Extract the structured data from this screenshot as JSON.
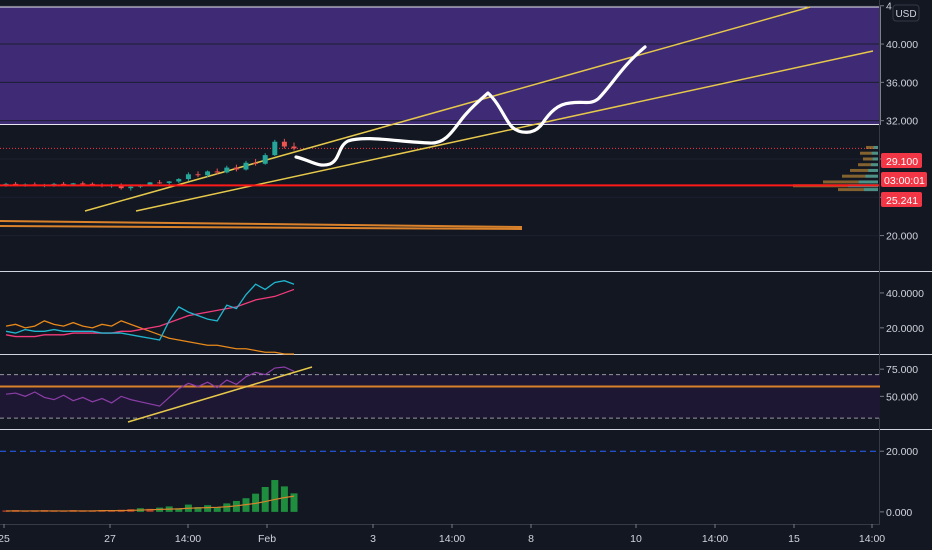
{
  "currency_label": "USD",
  "colors": {
    "background": "#131722",
    "zone_fill": "#3f2a75",
    "channel": "#e6c84b",
    "support_line": "#ff1a1a",
    "orange_line": "#d9822b",
    "price_badge": "#f23645",
    "up_candle": "#26a69a",
    "down_candle": "#ef5350",
    "hist_pos": "#1e8e3e",
    "hist_neg": "#a33a2a"
  },
  "price_badges": {
    "last_price": "29.100",
    "countdown": "03:00:01",
    "support": "25.241"
  },
  "chart_data": [
    {
      "type": "candlestick",
      "panel": "price",
      "y_ticks": [
        "4",
        "40.000",
        "36.000",
        "32.000",
        "28.000",
        "24.000",
        "20.000"
      ],
      "ylim": [
        16.3,
        44.6
      ],
      "zone": [
        31.6,
        44.6
      ],
      "support": 25.241,
      "last_price": 29.1,
      "x_ticks": [
        "25",
        "27",
        "14:00",
        "Feb",
        "3",
        "14:00",
        "8",
        "10",
        "14:00",
        "15",
        "14:00"
      ],
      "candles": [
        [
          25.3,
          25.5,
          25.1,
          25.4
        ],
        [
          25.4,
          25.6,
          25.2,
          25.3
        ],
        [
          25.3,
          25.45,
          25.1,
          25.35
        ],
        [
          25.35,
          25.55,
          25.15,
          25.25
        ],
        [
          25.25,
          25.4,
          25.05,
          25.3
        ],
        [
          25.3,
          25.5,
          25.1,
          25.4
        ],
        [
          25.4,
          25.6,
          25.2,
          25.35
        ],
        [
          25.35,
          25.5,
          25.15,
          25.45
        ],
        [
          25.45,
          25.65,
          25.25,
          25.4
        ],
        [
          25.4,
          25.55,
          25.2,
          25.3
        ],
        [
          25.3,
          25.45,
          25.05,
          25.2
        ],
        [
          25.2,
          25.4,
          25.0,
          25.25
        ],
        [
          25.25,
          25.45,
          24.8,
          24.95
        ],
        [
          24.95,
          25.2,
          24.7,
          25.1
        ],
        [
          25.1,
          25.35,
          24.95,
          25.3
        ],
        [
          25.3,
          25.6,
          25.2,
          25.55
        ],
        [
          25.55,
          25.8,
          25.4,
          25.5
        ],
        [
          25.5,
          25.7,
          25.3,
          25.65
        ],
        [
          25.65,
          26.0,
          25.5,
          25.9
        ],
        [
          25.9,
          26.6,
          25.7,
          26.4
        ],
        [
          26.4,
          26.7,
          26.1,
          26.3
        ],
        [
          26.3,
          26.8,
          26.1,
          26.7
        ],
        [
          26.7,
          27.0,
          26.4,
          26.6
        ],
        [
          26.6,
          27.3,
          26.5,
          27.1
        ],
        [
          27.1,
          27.4,
          26.7,
          26.9
        ],
        [
          26.9,
          27.8,
          26.8,
          27.6
        ],
        [
          27.6,
          28.0,
          27.3,
          27.5
        ],
        [
          27.5,
          28.6,
          27.4,
          28.4
        ],
        [
          28.4,
          30.0,
          28.3,
          29.8
        ],
        [
          29.8,
          30.1,
          29.1,
          29.3
        ],
        [
          29.3,
          29.7,
          28.9,
          29.1
        ]
      ],
      "volume_profile": [
        {
          "price": 29.2,
          "width": 12
        },
        {
          "price": 28.6,
          "width": 18
        },
        {
          "price": 28.0,
          "width": 15
        },
        {
          "price": 27.4,
          "width": 20
        },
        {
          "price": 26.8,
          "width": 28
        },
        {
          "price": 26.2,
          "width": 36
        },
        {
          "price": 25.6,
          "width": 55
        },
        {
          "price": 25.2,
          "width": 85
        },
        {
          "price": 24.8,
          "width": 40
        }
      ]
    },
    {
      "type": "line",
      "panel": "indicator-1",
      "y_ticks": [
        "40.0000",
        "20.0000"
      ],
      "ylim": [
        5,
        52
      ],
      "series": [
        {
          "color": "#e8891a",
          "values": [
            21,
            22,
            20,
            21,
            24,
            22,
            21,
            23,
            21,
            20,
            22,
            21,
            24,
            22,
            20,
            18,
            16,
            14,
            13,
            12,
            11,
            10,
            10,
            9,
            8,
            8,
            7,
            6,
            6,
            5,
            5
          ]
        },
        {
          "color": "#f23b7a",
          "values": [
            16,
            15,
            15,
            15,
            16,
            16,
            16,
            17,
            17,
            17,
            17,
            17,
            18,
            18,
            19,
            20,
            21,
            23,
            25,
            27,
            28,
            29,
            30,
            31,
            32,
            34,
            36,
            37,
            38,
            40,
            42
          ]
        },
        {
          "color": "#1fb6cf",
          "values": [
            18,
            17,
            19,
            18,
            18,
            19,
            18,
            18,
            18,
            18,
            17,
            17,
            17,
            16,
            15,
            14,
            13,
            24,
            32,
            29,
            27,
            25,
            24,
            33,
            31,
            39,
            45,
            42,
            46,
            47,
            45
          ]
        }
      ]
    },
    {
      "type": "line",
      "panel": "indicator-2",
      "y_ticks": [
        "75.000",
        "50.000"
      ],
      "ylim": [
        20,
        88
      ],
      "levels": [
        70,
        30
      ],
      "orange_level": 59,
      "series": [
        {
          "color": "#8d3ea8",
          "values": [
            52,
            53,
            50,
            54,
            49,
            47,
            51,
            46,
            49,
            45,
            48,
            44,
            50,
            47,
            45,
            43,
            41,
            49,
            57,
            62,
            59,
            63,
            58,
            65,
            61,
            68,
            72,
            70,
            76,
            77,
            73
          ]
        }
      ]
    },
    {
      "type": "bar",
      "panel": "indicator-3",
      "y_ticks": [
        "20.000",
        "0.000"
      ],
      "ylim": [
        -4,
        27
      ],
      "level": 20,
      "values": [
        0.5,
        0.6,
        0.4,
        0.5,
        0.6,
        0.5,
        0.4,
        0.6,
        0.5,
        0.5,
        0.6,
        0.4,
        0.7,
        0.9,
        1.2,
        1.0,
        1.4,
        1.8,
        1.2,
        2.4,
        1.6,
        2.2,
        1.5,
        2.8,
        3.6,
        4.5,
        6.0,
        8.2,
        10.5,
        8.4,
        6.1
      ],
      "signal": [
        0.3,
        0.3,
        0.3,
        0.3,
        0.3,
        0.3,
        0.3,
        0.3,
        0.3,
        0.3,
        0.4,
        0.4,
        0.4,
        0.5,
        0.6,
        0.7,
        0.8,
        0.9,
        1.0,
        1.2,
        1.3,
        1.4,
        1.5,
        1.7,
        2.0,
        2.4,
        2.8,
        3.4,
        4.1,
        4.7,
        5.2
      ]
    }
  ]
}
